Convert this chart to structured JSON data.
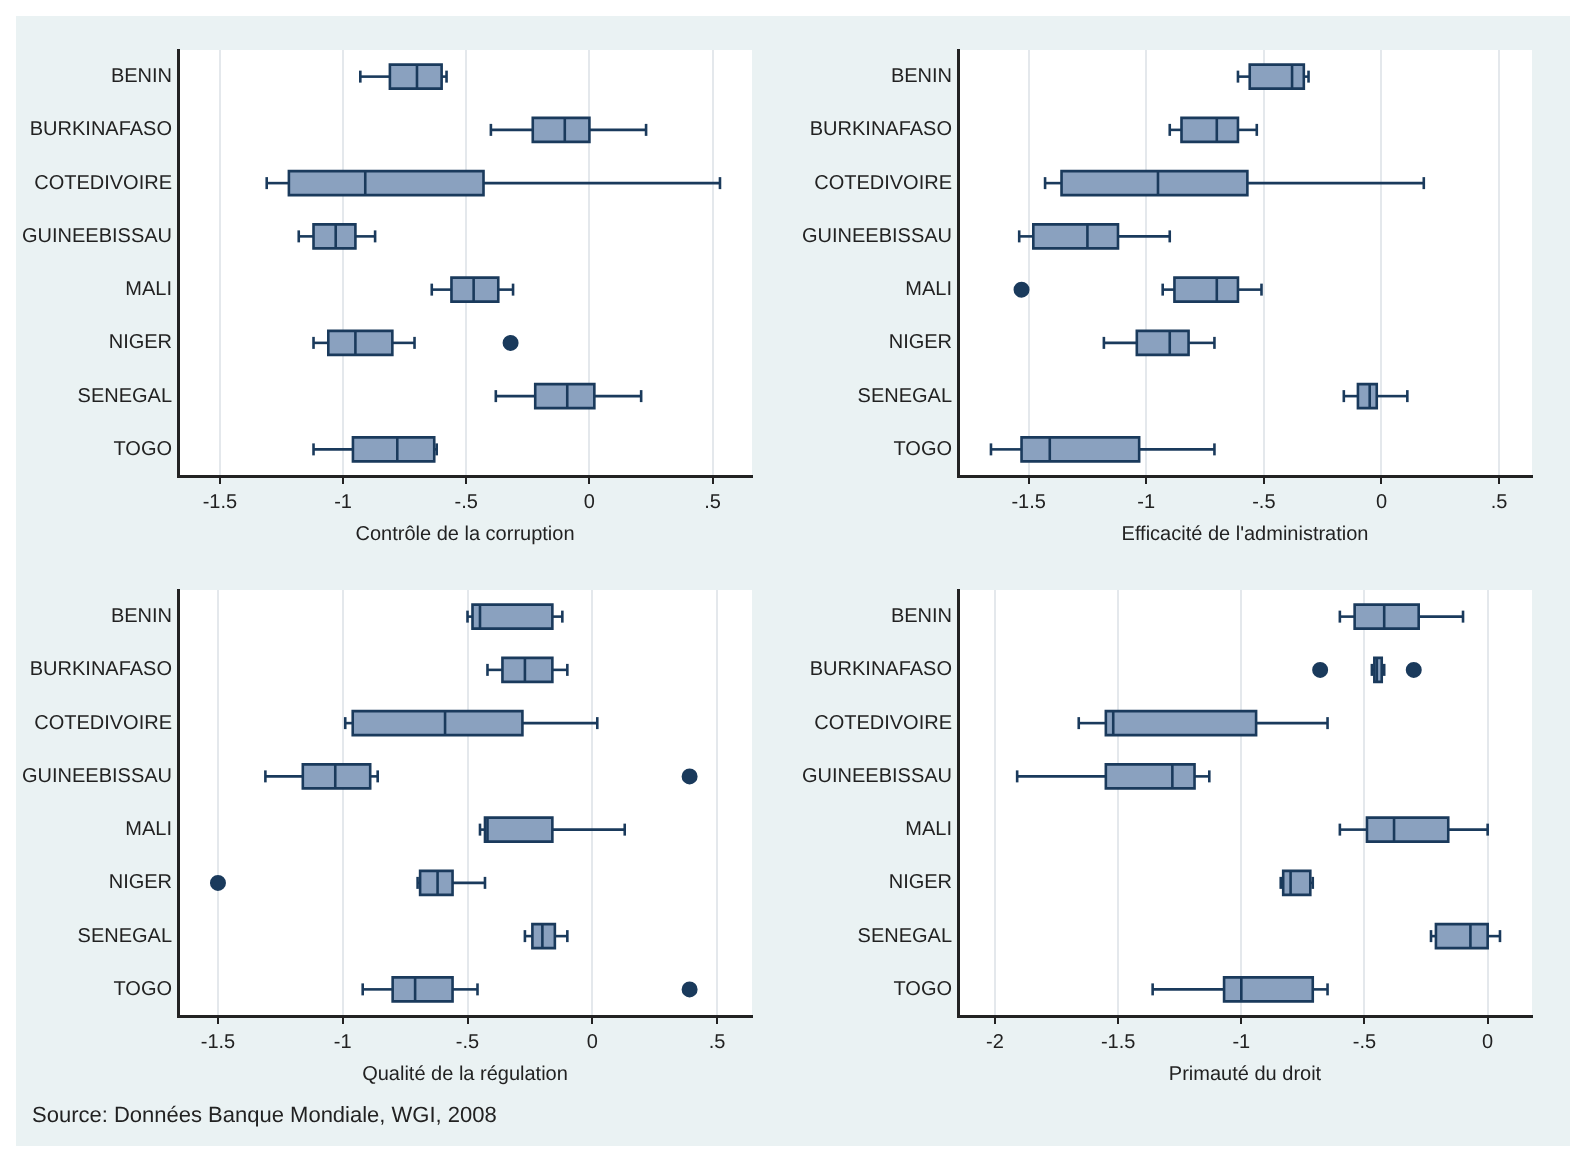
{
  "chart_data": [
    {
      "type": "box",
      "orientation": "horizontal",
      "xlabel": "Contrôle de la corruption",
      "color": "#8aa1bf",
      "grid": "x",
      "categories": [
        "BENIN",
        "BURKINAFASO",
        "COTEDIVOIRE",
        "GUINEEBISSAU",
        "MALI",
        "NIGER",
        "SENEGAL",
        "TOGO"
      ],
      "xlim": [
        -1.67,
        0.66
      ],
      "xticks": [
        {
          "value": -1.5,
          "label": "-1.5"
        },
        {
          "value": -1,
          "label": "-1"
        },
        {
          "value": -0.5,
          "label": "-.5"
        },
        {
          "value": 0,
          "label": "0"
        },
        {
          "value": 0.5,
          "label": ".5"
        }
      ],
      "boxes": [
        {
          "low": -0.93,
          "q1": -0.81,
          "median": -0.7,
          "q3": -0.6,
          "high": -0.58
        },
        {
          "low": -0.4,
          "q1": -0.23,
          "median": -0.1,
          "q3": 0,
          "high": 0.23
        },
        {
          "low": -1.31,
          "q1": -1.22,
          "median": -0.91,
          "q3": -0.43,
          "high": 0.53
        },
        {
          "low": -1.18,
          "q1": -1.12,
          "median": -1.03,
          "q3": -0.95,
          "high": -0.87
        },
        {
          "low": -0.64,
          "q1": -0.56,
          "median": -0.47,
          "q3": -0.37,
          "high": -0.31
        },
        {
          "low": -1.12,
          "q1": -1.06,
          "median": -0.95,
          "q3": -0.8,
          "high": -0.71,
          "outliers": [
            -0.32
          ]
        },
        {
          "low": -0.38,
          "q1": -0.22,
          "median": -0.09,
          "q3": 0.02,
          "high": 0.21
        },
        {
          "low": -1.12,
          "q1": -0.96,
          "median": -0.78,
          "q3": -0.63,
          "high": -0.62
        }
      ]
    },
    {
      "type": "box",
      "orientation": "horizontal",
      "xlabel": "Efficacité de l'administration",
      "color": "#8aa1bf",
      "grid": "x",
      "categories": [
        "BENIN",
        "BURKINAFASO",
        "COTEDIVOIRE",
        "GUINEEBISSAU",
        "MALI",
        "NIGER",
        "SENEGAL",
        "TOGO"
      ],
      "xlim": [
        -1.8,
        0.64
      ],
      "xticks": [
        {
          "value": -1.5,
          "label": "-1.5"
        },
        {
          "value": -1,
          "label": "-1"
        },
        {
          "value": -0.5,
          "label": "-.5"
        },
        {
          "value": 0,
          "label": "0"
        },
        {
          "value": 0.5,
          "label": ".5"
        }
      ],
      "boxes": [
        {
          "low": -0.61,
          "q1": -0.56,
          "median": -0.38,
          "q3": -0.33,
          "high": -0.31
        },
        {
          "low": -0.9,
          "q1": -0.85,
          "median": -0.7,
          "q3": -0.61,
          "high": -0.53
        },
        {
          "low": -1.43,
          "q1": -1.36,
          "median": -0.95,
          "q3": -0.57,
          "high": 0.18
        },
        {
          "low": -1.54,
          "q1": -1.48,
          "median": -1.25,
          "q3": -1.12,
          "high": -0.9
        },
        {
          "low": -0.93,
          "q1": -0.88,
          "median": -0.7,
          "q3": -0.61,
          "high": -0.51,
          "outliers": [
            -1.53
          ]
        },
        {
          "low": -1.18,
          "q1": -1.04,
          "median": -0.9,
          "q3": -0.82,
          "high": -0.71
        },
        {
          "low": -0.16,
          "q1": -0.1,
          "median": -0.05,
          "q3": -0.02,
          "high": 0.11
        },
        {
          "low": -1.66,
          "q1": -1.53,
          "median": -1.41,
          "q3": -1.03,
          "high": -0.71
        }
      ]
    },
    {
      "type": "box",
      "orientation": "horizontal",
      "xlabel": "Qualité de la régulation",
      "color": "#8aa1bf",
      "grid": "x",
      "categories": [
        "BENIN",
        "BURKINAFASO",
        "COTEDIVOIRE",
        "GUINEEBISSAU",
        "MALI",
        "NIGER",
        "SENEGAL",
        "TOGO"
      ],
      "xlim": [
        -1.66,
        0.64
      ],
      "xticks": [
        {
          "value": -1.5,
          "label": "-1.5"
        },
        {
          "value": -1,
          "label": "-1"
        },
        {
          "value": -0.5,
          "label": "-.5"
        },
        {
          "value": 0,
          "label": "0"
        },
        {
          "value": 0.5,
          "label": ".5"
        }
      ],
      "boxes": [
        {
          "low": -0.5,
          "q1": -0.48,
          "median": -0.45,
          "q3": -0.16,
          "high": -0.12
        },
        {
          "low": -0.42,
          "q1": -0.36,
          "median": -0.27,
          "q3": -0.16,
          "high": -0.1
        },
        {
          "low": -0.99,
          "q1": -0.96,
          "median": -0.59,
          "q3": -0.28,
          "high": 0.02
        },
        {
          "low": -1.31,
          "q1": -1.16,
          "median": -1.03,
          "q3": -0.89,
          "high": -0.86,
          "outliers": [
            0.39
          ]
        },
        {
          "low": -0.45,
          "q1": -0.43,
          "median": -0.42,
          "q3": -0.16,
          "high": 0.13
        },
        {
          "low": -0.7,
          "q1": -0.69,
          "median": -0.62,
          "q3": -0.56,
          "high": -0.43,
          "outliers": [
            -1.5
          ]
        },
        {
          "low": -0.27,
          "q1": -0.24,
          "median": -0.2,
          "q3": -0.15,
          "high": -0.1
        },
        {
          "low": -0.92,
          "q1": -0.8,
          "median": -0.71,
          "q3": -0.56,
          "high": -0.46,
          "outliers": [
            0.39
          ]
        }
      ]
    },
    {
      "type": "box",
      "orientation": "horizontal",
      "xlabel": "Primauté du droit",
      "color": "#8aa1bf",
      "grid": "x",
      "categories": [
        "BENIN",
        "BURKINAFASO",
        "COTEDIVOIRE",
        "GUINEEBISSAU",
        "MALI",
        "NIGER",
        "SENEGAL",
        "TOGO"
      ],
      "xlim": [
        -2.15,
        0.18
      ],
      "xticks": [
        {
          "value": -2,
          "label": "-2"
        },
        {
          "value": -1.5,
          "label": "-1.5"
        },
        {
          "value": -1,
          "label": "-1"
        },
        {
          "value": -0.5,
          "label": "-.5"
        },
        {
          "value": 0,
          "label": "0"
        }
      ],
      "boxes": [
        {
          "low": -0.6,
          "q1": -0.54,
          "median": -0.42,
          "q3": -0.28,
          "high": -0.1
        },
        {
          "low": -0.47,
          "q1": -0.46,
          "median": -0.45,
          "q3": -0.43,
          "high": -0.42,
          "outliers": [
            -0.68,
            -0.3
          ]
        },
        {
          "low": -1.66,
          "q1": -1.55,
          "median": -1.52,
          "q3": -0.94,
          "high": -0.65
        },
        {
          "low": -1.91,
          "q1": -1.55,
          "median": -1.28,
          "q3": -1.19,
          "high": -1.13
        },
        {
          "low": -0.6,
          "q1": -0.49,
          "median": -0.38,
          "q3": -0.16,
          "high": 0
        },
        {
          "low": -0.84,
          "q1": -0.83,
          "median": -0.8,
          "q3": -0.72,
          "high": -0.71
        },
        {
          "low": -0.23,
          "q1": -0.21,
          "median": -0.07,
          "q3": 0,
          "high": 0.05
        },
        {
          "low": -1.36,
          "q1": -1.07,
          "median": -1,
          "q3": -0.71,
          "high": -0.65
        }
      ],
      "annotations": [
        "Source: Données Banque Mondiale, WGI, 2008"
      ]
    }
  ]
}
